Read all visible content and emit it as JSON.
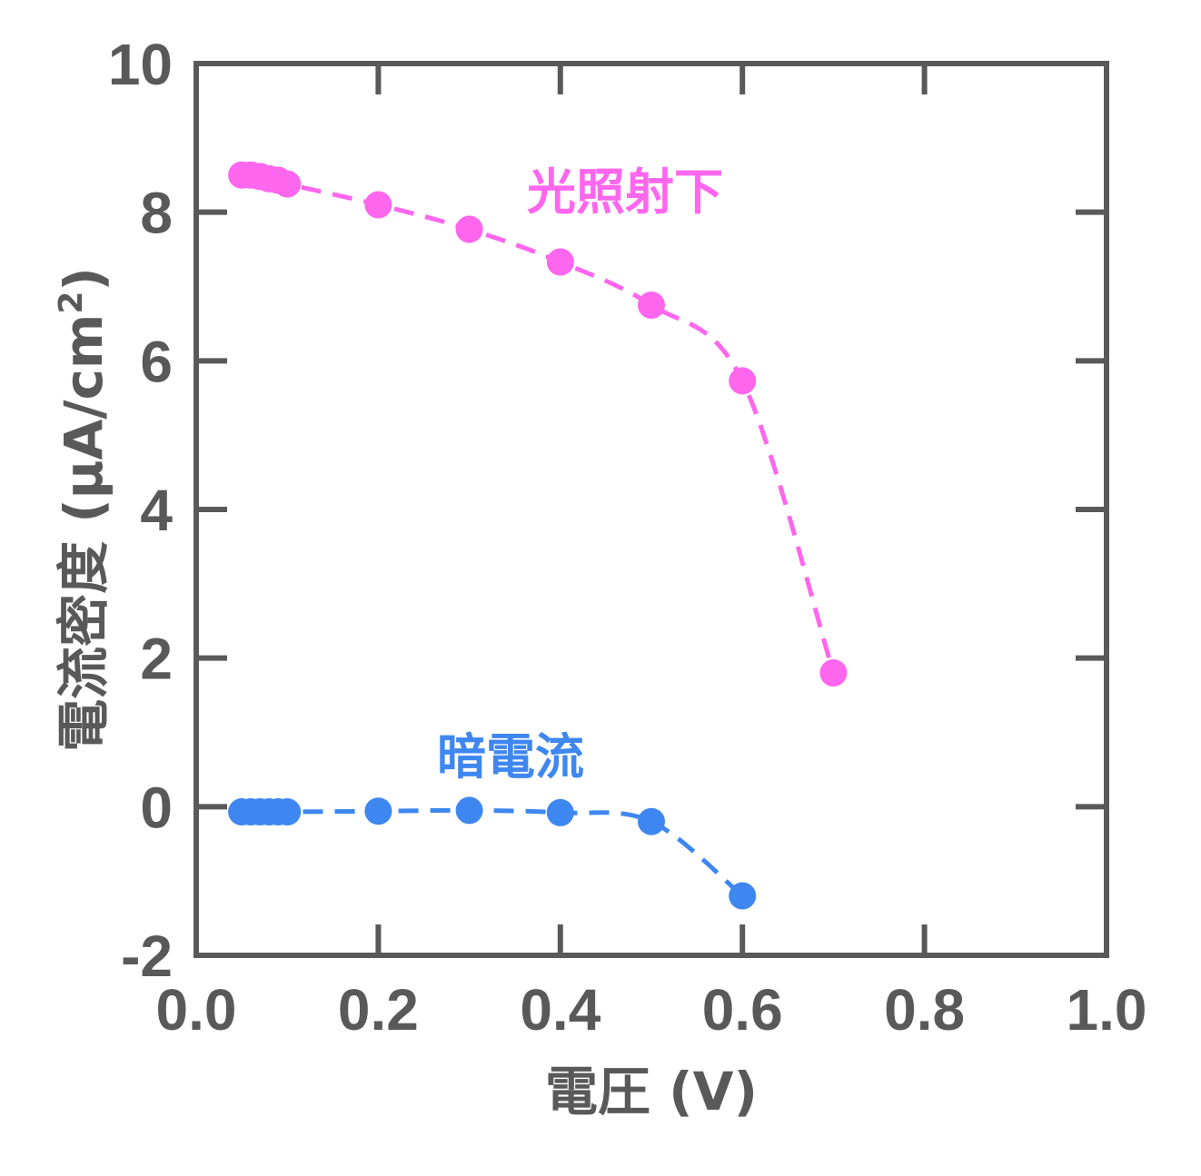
{
  "chart_data": {
    "type": "scatter",
    "xlabel": "電圧 (V)",
    "ylabel_text": "電流密度 (μA/cm",
    "ylabel_superscript": "2",
    "ylabel_close": ")",
    "xlim": [
      0.0,
      1.0
    ],
    "ylim": [
      -2,
      10
    ],
    "xticks": [
      "0.0",
      "0.2",
      "0.4",
      "0.6",
      "0.8",
      "1.0"
    ],
    "yticks": [
      "-2",
      "0",
      "2",
      "4",
      "6",
      "8",
      "10"
    ],
    "grid": false,
    "series": [
      {
        "name": "光照射下",
        "color": "#ff66ee",
        "line_style": "dashed",
        "x": [
          0.05,
          0.06,
          0.07,
          0.08,
          0.09,
          0.1,
          0.2,
          0.3,
          0.4,
          0.5,
          0.6,
          0.7
        ],
        "y": [
          8.5,
          8.5,
          8.48,
          8.45,
          8.43,
          8.38,
          8.1,
          7.77,
          7.33,
          6.75,
          5.73,
          1.8
        ]
      },
      {
        "name": "暗電流",
        "color": "#3f87f0",
        "line_style": "dashed",
        "x": [
          0.05,
          0.06,
          0.07,
          0.08,
          0.09,
          0.1,
          0.2,
          0.3,
          0.4,
          0.5,
          0.6
        ],
        "y": [
          -0.07,
          -0.07,
          -0.07,
          -0.07,
          -0.07,
          -0.07,
          -0.06,
          -0.05,
          -0.08,
          -0.2,
          -1.2
        ]
      }
    ]
  }
}
